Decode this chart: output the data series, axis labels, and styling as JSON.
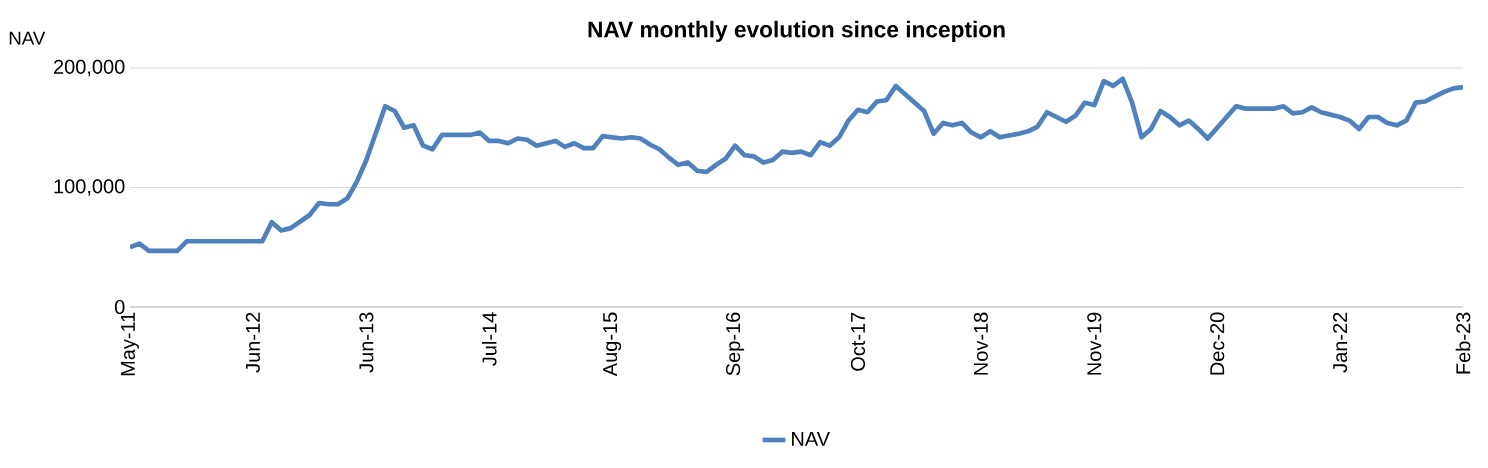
{
  "chart_data": {
    "type": "line",
    "title": "NAV monthly evolution since inception",
    "ylabel": "NAV",
    "x": [
      "2011-05",
      "2011-06",
      "2011-07",
      "2011-10",
      "2011-11",
      "2012-07",
      "2012-08",
      "2012-09",
      "2012-10",
      "2012-12",
      "2013-01",
      "2013-02",
      "2013-03",
      "2013-04",
      "2013-05",
      "2013-06",
      "2013-08",
      "2013-09",
      "2013-10",
      "2013-11",
      "2013-12",
      "2014-01",
      "2014-02",
      "2014-05",
      "2014-06",
      "2014-07",
      "2014-08",
      "2014-09",
      "2014-10",
      "2014-11",
      "2014-12",
      "2015-02",
      "2015-03",
      "2015-04",
      "2015-05",
      "2015-06",
      "2015-07",
      "2015-09",
      "2015-10",
      "2015-11",
      "2015-12",
      "2016-01",
      "2016-02",
      "2016-03",
      "2016-04",
      "2016-05",
      "2016-06",
      "2016-07",
      "2016-08",
      "2016-09",
      "2016-10",
      "2016-11",
      "2016-12",
      "2017-01",
      "2017-02",
      "2017-03",
      "2017-04",
      "2017-05",
      "2017-06",
      "2017-07",
      "2017-08",
      "2017-09",
      "2017-10",
      "2017-11",
      "2017-12",
      "2018-01",
      "2018-02",
      "2018-05",
      "2018-06",
      "2018-07",
      "2018-08",
      "2018-09",
      "2018-10",
      "2018-11",
      "2018-12",
      "2019-01",
      "2019-03",
      "2019-04",
      "2019-05",
      "2019-06",
      "2019-08",
      "2019-09",
      "2019-10",
      "2019-11",
      "2019-12",
      "2020-01",
      "2020-02",
      "2020-03",
      "2020-04",
      "2020-05",
      "2020-06",
      "2020-07",
      "2020-08",
      "2020-09",
      "2020-10",
      "2020-11",
      "2020-12",
      "2021-02",
      "2021-03",
      "2021-06",
      "2021-07",
      "2021-08",
      "2021-09",
      "2021-10",
      "2021-11",
      "2022-01",
      "2022-02",
      "2022-03",
      "2022-04",
      "2022-05",
      "2022-06",
      "2022-07",
      "2022-08",
      "2022-09",
      "2022-10",
      "2022-11",
      "2022-12",
      "2023-01",
      "2023-02"
    ],
    "series": [
      {
        "name": "NAV",
        "color": "#4f81bd",
        "values": [
          50000,
          53000,
          47000,
          47000,
          55000,
          55000,
          71000,
          64000,
          66000,
          77000,
          87000,
          86000,
          86000,
          91000,
          105000,
          123000,
          168000,
          164000,
          150000,
          152000,
          135000,
          132000,
          144000,
          144000,
          146000,
          139000,
          139000,
          137000,
          141000,
          140000,
          135000,
          139000,
          134000,
          137000,
          133000,
          133000,
          143000,
          141000,
          142000,
          141000,
          136000,
          132000,
          125000,
          119000,
          121000,
          114000,
          113000,
          119000,
          124000,
          135000,
          127000,
          126000,
          121000,
          123000,
          130000,
          129000,
          130000,
          127000,
          138000,
          135000,
          142000,
          156000,
          165000,
          163000,
          172000,
          173000,
          185000,
          164000,
          145000,
          154000,
          152000,
          154000,
          146000,
          142000,
          147000,
          142000,
          145000,
          147000,
          151000,
          163000,
          155000,
          160000,
          171000,
          169000,
          189000,
          185000,
          191000,
          171000,
          142000,
          149000,
          164000,
          159000,
          152000,
          156000,
          149000,
          141000,
          150000,
          168000,
          166000,
          166000,
          168000,
          162000,
          163000,
          167000,
          163000,
          159000,
          156000,
          149000,
          159000,
          159000,
          154000,
          152000,
          156000,
          171000,
          172000,
          176000,
          180000,
          183000,
          184000
        ]
      }
    ],
    "xlim": [
      "2011-05",
      "2023-02"
    ],
    "xticks": [
      {
        "value": "2011-05",
        "label": "May-11"
      },
      {
        "value": "2012-06",
        "label": "Jun-12"
      },
      {
        "value": "2013-06",
        "label": "Jun-13"
      },
      {
        "value": "2014-07",
        "label": "Jul-14"
      },
      {
        "value": "2015-08",
        "label": "Aug-15"
      },
      {
        "value": "2016-09",
        "label": "Sep-16"
      },
      {
        "value": "2017-10",
        "label": "Oct-17"
      },
      {
        "value": "2018-11",
        "label": "Nov-18"
      },
      {
        "value": "2019-11",
        "label": "Nov-19"
      },
      {
        "value": "2020-12",
        "label": "Dec-20"
      },
      {
        "value": "2022-01",
        "label": "Jan-22"
      },
      {
        "value": "2023-02",
        "label": "Feb-23"
      }
    ],
    "ylim": [
      0,
      200000
    ],
    "yticks": [
      0,
      {
        "value": 100000,
        "label": "100,000"
      },
      {
        "value": 200000,
        "label": "200,000"
      }
    ],
    "grid": "y",
    "legend": "bottom",
    "marker": "none",
    "line_style": "solid"
  }
}
